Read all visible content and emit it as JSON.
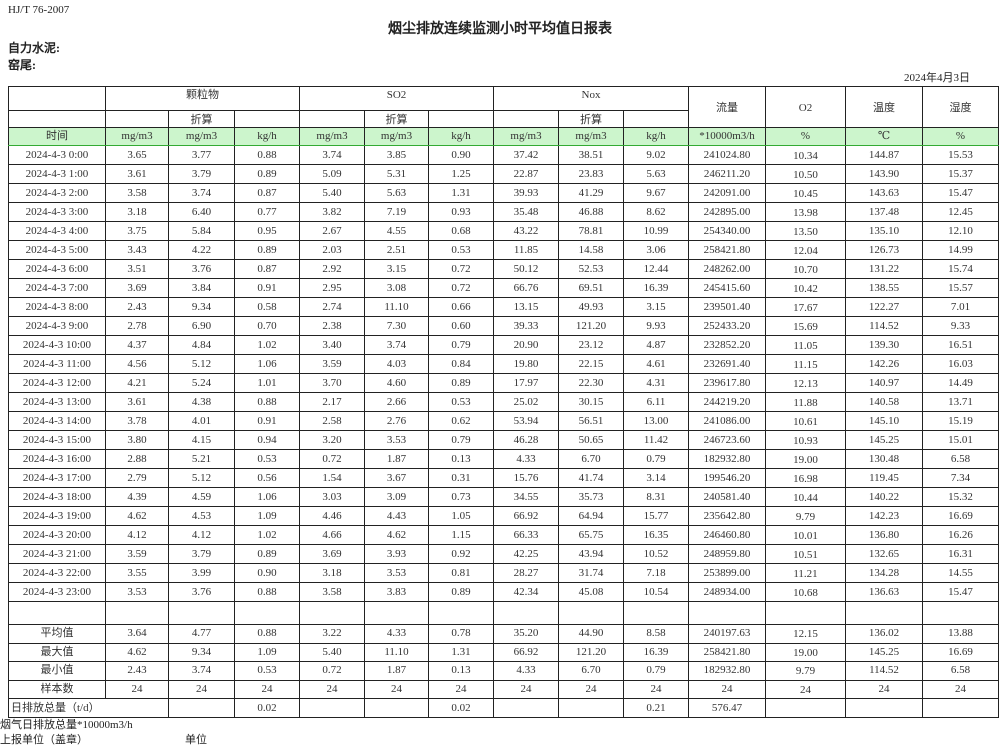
{
  "header": {
    "standard": "HJ/T  76-2007",
    "title": "烟尘排放连续监测小时平均值日报表",
    "company": "自力水泥:",
    "location": "窑尾:",
    "date": "2024年4月3日"
  },
  "table": {
    "groups": {
      "particulate": "颗粒物",
      "so2": "SO2",
      "nox": "Nox",
      "flow": "流量",
      "o2": "O2",
      "temp": "温度",
      "humidity": "湿度"
    },
    "converted_label": "折算",
    "units": [
      "时间",
      "mg/m3",
      "mg/m3",
      "kg/h",
      "mg/m3",
      "mg/m3",
      "kg/h",
      "mg/m3",
      "mg/m3",
      "kg/h",
      "*10000m3/h",
      "%",
      "℃",
      "%"
    ],
    "header_color": "#ccf5cc",
    "rows": [
      [
        "2024-4-3 0:00",
        "3.65",
        "3.77",
        "0.88",
        "3.74",
        "3.85",
        "0.90",
        "37.42",
        "38.51",
        "9.02",
        "241024.80",
        "10.34",
        "144.87",
        "15.53"
      ],
      [
        "2024-4-3 1:00",
        "3.61",
        "3.79",
        "0.89",
        "5.09",
        "5.31",
        "1.25",
        "22.87",
        "23.83",
        "5.63",
        "246211.20",
        "10.50",
        "143.90",
        "15.37"
      ],
      [
        "2024-4-3 2:00",
        "3.58",
        "3.74",
        "0.87",
        "5.40",
        "5.63",
        "1.31",
        "39.93",
        "41.29",
        "9.67",
        "242091.00",
        "10.45",
        "143.63",
        "15.47"
      ],
      [
        "2024-4-3 3:00",
        "3.18",
        "6.40",
        "0.77",
        "3.82",
        "7.19",
        "0.93",
        "35.48",
        "46.88",
        "8.62",
        "242895.00",
        "13.98",
        "137.48",
        "12.45"
      ],
      [
        "2024-4-3 4:00",
        "3.75",
        "5.84",
        "0.95",
        "2.67",
        "4.55",
        "0.68",
        "43.22",
        "78.81",
        "10.99",
        "254340.00",
        "13.50",
        "135.10",
        "12.10"
      ],
      [
        "2024-4-3 5:00",
        "3.43",
        "4.22",
        "0.89",
        "2.03",
        "2.51",
        "0.53",
        "11.85",
        "14.58",
        "3.06",
        "258421.80",
        "12.04",
        "126.73",
        "14.99"
      ],
      [
        "2024-4-3 6:00",
        "3.51",
        "3.76",
        "0.87",
        "2.92",
        "3.15",
        "0.72",
        "50.12",
        "52.53",
        "12.44",
        "248262.00",
        "10.70",
        "131.22",
        "15.74"
      ],
      [
        "2024-4-3 7:00",
        "3.69",
        "3.84",
        "0.91",
        "2.95",
        "3.08",
        "0.72",
        "66.76",
        "69.51",
        "16.39",
        "245415.60",
        "10.42",
        "138.55",
        "15.57"
      ],
      [
        "2024-4-3 8:00",
        "2.43",
        "9.34",
        "0.58",
        "2.74",
        "11.10",
        "0.66",
        "13.15",
        "49.93",
        "3.15",
        "239501.40",
        "17.67",
        "122.27",
        "7.01"
      ],
      [
        "2024-4-3 9:00",
        "2.78",
        "6.90",
        "0.70",
        "2.38",
        "7.30",
        "0.60",
        "39.33",
        "121.20",
        "9.93",
        "252433.20",
        "15.69",
        "114.52",
        "9.33"
      ],
      [
        "2024-4-3 10:00",
        "4.37",
        "4.84",
        "1.02",
        "3.40",
        "3.74",
        "0.79",
        "20.90",
        "23.12",
        "4.87",
        "232852.20",
        "11.05",
        "139.30",
        "16.51"
      ],
      [
        "2024-4-3 11:00",
        "4.56",
        "5.12",
        "1.06",
        "3.59",
        "4.03",
        "0.84",
        "19.80",
        "22.15",
        "4.61",
        "232691.40",
        "11.15",
        "142.26",
        "16.03"
      ],
      [
        "2024-4-3 12:00",
        "4.21",
        "5.24",
        "1.01",
        "3.70",
        "4.60",
        "0.89",
        "17.97",
        "22.30",
        "4.31",
        "239617.80",
        "12.13",
        "140.97",
        "14.49"
      ],
      [
        "2024-4-3 13:00",
        "3.61",
        "4.38",
        "0.88",
        "2.17",
        "2.66",
        "0.53",
        "25.02",
        "30.15",
        "6.11",
        "244219.20",
        "11.88",
        "140.58",
        "13.71"
      ],
      [
        "2024-4-3 14:00",
        "3.78",
        "4.01",
        "0.91",
        "2.58",
        "2.76",
        "0.62",
        "53.94",
        "56.51",
        "13.00",
        "241086.00",
        "10.61",
        "145.10",
        "15.19"
      ],
      [
        "2024-4-3 15:00",
        "3.80",
        "4.15",
        "0.94",
        "3.20",
        "3.53",
        "0.79",
        "46.28",
        "50.65",
        "11.42",
        "246723.60",
        "10.93",
        "145.25",
        "15.01"
      ],
      [
        "2024-4-3 16:00",
        "2.88",
        "5.21",
        "0.53",
        "0.72",
        "1.87",
        "0.13",
        "4.33",
        "6.70",
        "0.79",
        "182932.80",
        "19.00",
        "130.48",
        "6.58"
      ],
      [
        "2024-4-3 17:00",
        "2.79",
        "5.12",
        "0.56",
        "1.54",
        "3.67",
        "0.31",
        "15.76",
        "41.74",
        "3.14",
        "199546.20",
        "16.98",
        "119.45",
        "7.34"
      ],
      [
        "2024-4-3 18:00",
        "4.39",
        "4.59",
        "1.06",
        "3.03",
        "3.09",
        "0.73",
        "34.55",
        "35.73",
        "8.31",
        "240581.40",
        "10.44",
        "140.22",
        "15.32"
      ],
      [
        "2024-4-3 19:00",
        "4.62",
        "4.53",
        "1.09",
        "4.46",
        "4.43",
        "1.05",
        "66.92",
        "64.94",
        "15.77",
        "235642.80",
        "9.79",
        "142.23",
        "16.69"
      ],
      [
        "2024-4-3 20:00",
        "4.12",
        "4.12",
        "1.02",
        "4.66",
        "4.62",
        "1.15",
        "66.33",
        "65.75",
        "16.35",
        "246460.80",
        "10.01",
        "136.80",
        "16.26"
      ],
      [
        "2024-4-3 21:00",
        "3.59",
        "3.79",
        "0.89",
        "3.69",
        "3.93",
        "0.92",
        "42.25",
        "43.94",
        "10.52",
        "248959.80",
        "10.51",
        "132.65",
        "16.31"
      ],
      [
        "2024-4-3 22:00",
        "3.55",
        "3.99",
        "0.90",
        "3.18",
        "3.53",
        "0.81",
        "28.27",
        "31.74",
        "7.18",
        "253899.00",
        "11.21",
        "134.28",
        "14.55"
      ],
      [
        "2024-4-3 23:00",
        "3.53",
        "3.76",
        "0.88",
        "3.58",
        "3.83",
        "0.89",
        "42.34",
        "45.08",
        "10.54",
        "248934.00",
        "10.68",
        "136.63",
        "15.47"
      ]
    ],
    "summary": [
      [
        "平均值",
        "3.64",
        "4.77",
        "0.88",
        "3.22",
        "4.33",
        "0.78",
        "35.20",
        "44.90",
        "8.58",
        "240197.63",
        "12.15",
        "136.02",
        "13.88"
      ],
      [
        "最大值",
        "4.62",
        "9.34",
        "1.09",
        "5.40",
        "11.10",
        "1.31",
        "66.92",
        "121.20",
        "16.39",
        "258421.80",
        "19.00",
        "145.25",
        "16.69"
      ],
      [
        "最小值",
        "2.43",
        "3.74",
        "0.53",
        "0.72",
        "1.87",
        "0.13",
        "4.33",
        "6.70",
        "0.79",
        "182932.80",
        "9.79",
        "114.52",
        "6.58"
      ],
      [
        "样本数",
        "24",
        "24",
        "24",
        "24",
        "24",
        "24",
        "24",
        "24",
        "24",
        "24",
        "24",
        "24",
        "24"
      ]
    ],
    "daily_total": {
      "label": "日排放总量（t/d）",
      "values": [
        "",
        "0.02",
        "",
        "",
        "0.02",
        "",
        "",
        "0.21",
        "576.47",
        "",
        "",
        ""
      ]
    }
  },
  "footer": {
    "flue_gas_note": "烟气日排放总量*10000m3/h",
    "reporting_unit": "上报单位（盖章）",
    "unit_label": "单位"
  }
}
